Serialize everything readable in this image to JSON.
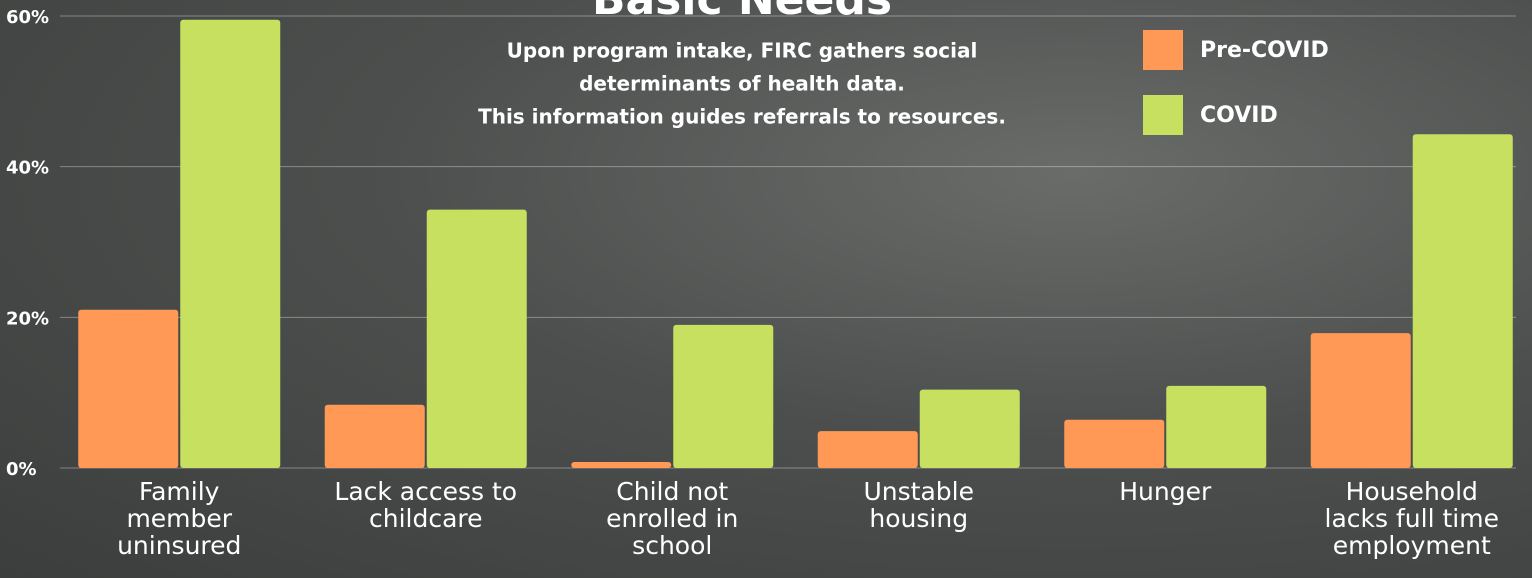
{
  "chart_data": {
    "type": "bar",
    "title": "Basic Needs",
    "subtitle": [
      "Upon program intake, FIRC gathers social",
      "determinants of health data.",
      "This information guides referrals to resources."
    ],
    "categories": [
      "Family member uninsured",
      "Lack access to childcare",
      "Child not enrolled in school",
      "Unstable housing",
      "Hunger",
      "Household lacks full time employment"
    ],
    "series": [
      {
        "name": "Pre-COVID",
        "color": "#ff9955",
        "values": [
          21,
          8.4,
          0.8,
          4.9,
          6.4,
          17.9
        ]
      },
      {
        "name": "COVID",
        "color": "#c8e060",
        "values": [
          59.5,
          34.3,
          19,
          10.4,
          10.9,
          44.3
        ]
      }
    ],
    "ylim": [
      0,
      60
    ],
    "yticks": [
      {
        "value": 0,
        "label": "0%"
      },
      {
        "value": 20,
        "label": "20%"
      },
      {
        "value": 40,
        "label": "40%"
      },
      {
        "value": 60,
        "label": "60%"
      }
    ],
    "grid": true,
    "legend": "top-right"
  }
}
